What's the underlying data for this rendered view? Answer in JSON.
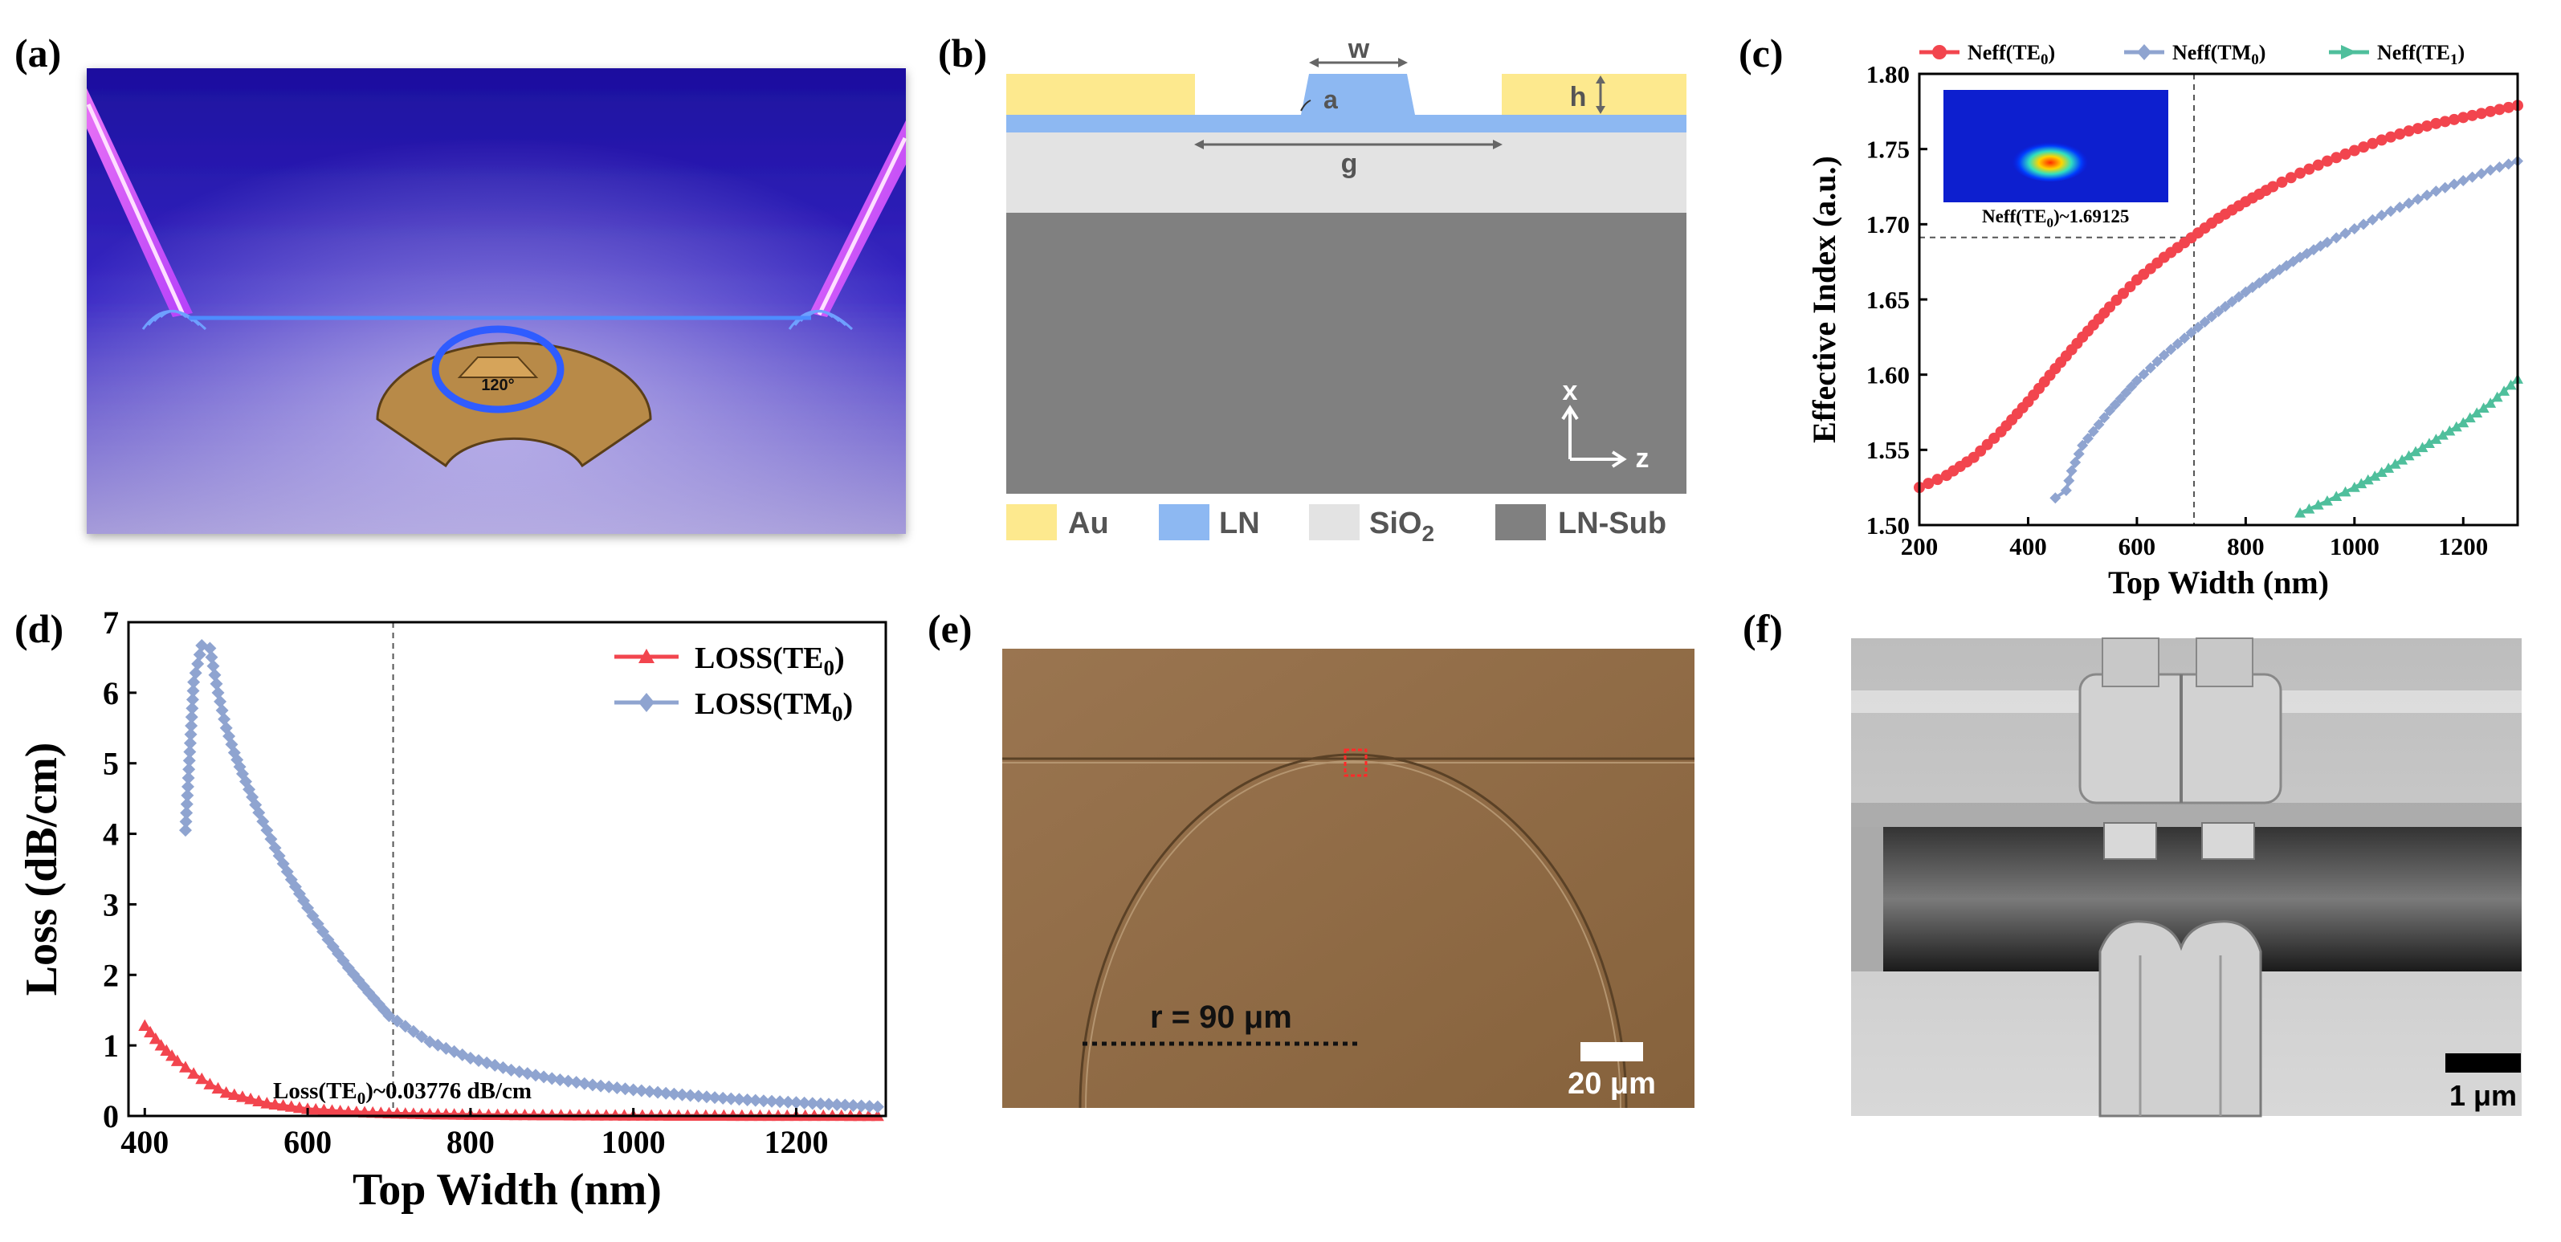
{
  "panel_labels": {
    "a": "(a)",
    "b": "(b)",
    "c": "(c)",
    "d": "(d)",
    "e": "(e)",
    "f": "(f)"
  },
  "colors": {
    "te0": "#f2454e",
    "tm0": "#8fa4d0",
    "te1": "#4fbf9c",
    "au": "#fde98e",
    "ln": "#8db8f2",
    "sio2": "#e3e3e3",
    "ln_sub": "#808080"
  },
  "panel_a": {
    "angle_label": "120°"
  },
  "panel_b": {
    "labels": {
      "w": "w",
      "h": "h",
      "a": "a",
      "g": "g",
      "x": "x",
      "z": "z"
    },
    "legend": [
      {
        "label": "Au",
        "color": "#fde98e"
      },
      {
        "label": "LN",
        "color": "#8db8f2"
      },
      {
        "label": "SiO",
        "sub": "2",
        "color": "#e3e3e3"
      },
      {
        "label": "LN-Sub",
        "color": "#808080"
      }
    ]
  },
  "panel_c": {
    "legend": [
      {
        "main": "Neff(TE",
        "sub": "0",
        "close": ")",
        "icon": "circle-marker-icon"
      },
      {
        "main": "Neff(TM",
        "sub": "0",
        "close": ")",
        "icon": "diamond-marker-icon"
      },
      {
        "main": "Neff(TE",
        "sub": "1",
        "close": ")",
        "icon": "triangle-marker-icon"
      }
    ],
    "inset_annotation": {
      "main": "Neff(TE",
      "sub": "0",
      "rest": ")~1.69125"
    }
  },
  "panel_d": {
    "legend": [
      {
        "main": "LOSS(TE",
        "sub": "0",
        "close": ")",
        "icon": "triangle-marker-icon"
      },
      {
        "main": "LOSS(TM",
        "sub": "0",
        "close": ")",
        "icon": "diamond-marker-icon"
      }
    ],
    "annotation": {
      "main": "Loss(TE",
      "sub": "0",
      "rest": ")~0.03776 dB/cm"
    }
  },
  "panel_e": {
    "radius_label": "r = 90 μm",
    "scale_label": "20 μm"
  },
  "panel_f": {
    "scale_label": "1 μm"
  },
  "chart_data": [
    {
      "id": "c",
      "type": "line",
      "title": "",
      "xlabel": "Top Width (nm)",
      "ylabel": "Effective Index (a.u.)",
      "xlim": [
        200,
        1300
      ],
      "ylim": [
        1.5,
        1.8
      ],
      "xticks": [
        200,
        400,
        600,
        800,
        1000,
        1200
      ],
      "yticks": [
        1.5,
        1.55,
        1.6,
        1.65,
        1.7,
        1.75,
        1.8
      ],
      "ytick_labels": [
        "1.50",
        "1.55",
        "1.60",
        "1.65",
        "1.70",
        "1.75",
        "1.80"
      ],
      "reference_vline_x": 705,
      "reference_hline_y": 1.69125,
      "series": [
        {
          "name": "Neff(TE0)",
          "x": [
            200,
            250,
            300,
            350,
            400,
            450,
            500,
            550,
            600,
            650,
            700,
            750,
            800,
            850,
            900,
            950,
            1000,
            1050,
            1100,
            1150,
            1200,
            1250,
            1300
          ],
          "values": [
            1.525,
            1.533,
            1.545,
            1.562,
            1.582,
            1.604,
            1.625,
            1.645,
            1.663,
            1.678,
            1.691,
            1.704,
            1.715,
            1.725,
            1.734,
            1.742,
            1.749,
            1.756,
            1.762,
            1.767,
            1.771,
            1.775,
            1.779
          ]
        },
        {
          "name": "Neff(TM0)",
          "x": [
            450,
            470,
            480,
            500,
            550,
            600,
            650,
            700,
            750,
            800,
            850,
            900,
            950,
            1000,
            1050,
            1100,
            1150,
            1200,
            1250,
            1300
          ],
          "values": [
            1.518,
            1.523,
            1.536,
            1.553,
            1.576,
            1.596,
            1.613,
            1.628,
            1.642,
            1.655,
            1.667,
            1.678,
            1.688,
            1.697,
            1.706,
            1.714,
            1.722,
            1.729,
            1.736,
            1.742
          ]
        },
        {
          "name": "Neff(TE1)",
          "x": [
            900,
            950,
            1000,
            1050,
            1100,
            1150,
            1200,
            1250,
            1300
          ],
          "values": [
            1.508,
            1.516,
            1.525,
            1.535,
            1.546,
            1.557,
            1.568,
            1.581,
            1.597
          ]
        }
      ]
    },
    {
      "id": "d",
      "type": "line",
      "title": "",
      "xlabel": "Top Width (nm)",
      "ylabel": "Loss (dB/cm)",
      "xlim": [
        380,
        1310
      ],
      "ylim": [
        0,
        7
      ],
      "xticks": [
        400,
        600,
        800,
        1000,
        1200
      ],
      "yticks": [
        0,
        1,
        2,
        3,
        4,
        5,
        6,
        7
      ],
      "reference_vline_x": 705,
      "series": [
        {
          "name": "LOSS(TE0)",
          "x": [
            400,
            420,
            440,
            460,
            480,
            500,
            550,
            600,
            650,
            700,
            750,
            800,
            900,
            1000,
            1100,
            1200,
            1300
          ],
          "values": [
            1.28,
            1.0,
            0.78,
            0.6,
            0.45,
            0.33,
            0.18,
            0.1,
            0.06,
            0.038,
            0.025,
            0.018,
            0.01,
            0.006,
            0.004,
            0.003,
            0.002
          ]
        },
        {
          "name": "LOSS(TM0)",
          "x": [
            450,
            460,
            470,
            480,
            490,
            500,
            510,
            520,
            540,
            560,
            580,
            600,
            625,
            650,
            675,
            700,
            750,
            800,
            850,
            900,
            950,
            1000,
            1050,
            1100,
            1150,
            1200,
            1250,
            1300
          ],
          "values": [
            4.05,
            6.15,
            6.67,
            6.63,
            6.0,
            5.5,
            5.15,
            4.85,
            4.3,
            3.8,
            3.35,
            2.95,
            2.5,
            2.1,
            1.75,
            1.42,
            1.05,
            0.82,
            0.65,
            0.53,
            0.44,
            0.37,
            0.31,
            0.26,
            0.22,
            0.19,
            0.16,
            0.13
          ]
        }
      ]
    }
  ]
}
